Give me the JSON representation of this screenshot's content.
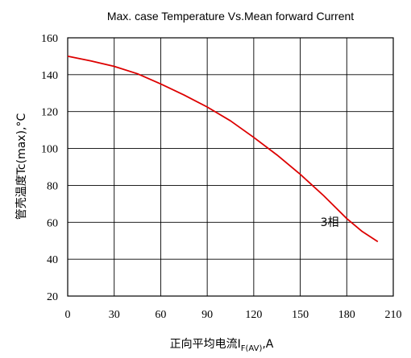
{
  "chart_data": {
    "type": "line",
    "title": "Max. case Temperature Vs.Mean forward Current",
    "ylabel": "管壳温度Tc(max),°C",
    "xlabel": {
      "prefix": "正向平均电流I",
      "subscript": "F(AV)",
      "suffix": ",A"
    },
    "xlim": [
      0,
      210
    ],
    "ylim": [
      20,
      160
    ],
    "xticks": [
      0,
      30,
      60,
      90,
      120,
      150,
      180,
      210
    ],
    "yticks": [
      20,
      40,
      60,
      80,
      100,
      120,
      140,
      160
    ],
    "grid": true,
    "series": [
      {
        "color": "#dd0000",
        "x": [
          0,
          15,
          30,
          45,
          60,
          75,
          90,
          105,
          120,
          135,
          150,
          165,
          180,
          190,
          200
        ],
        "y": [
          150,
          147.5,
          144.5,
          140.5,
          135,
          129,
          122.5,
          115,
          106,
          96.5,
          86,
          74.5,
          62,
          55,
          49.5
        ]
      }
    ],
    "annotations": [
      {
        "text": "3相",
        "x": 163,
        "y": 58
      }
    ]
  }
}
